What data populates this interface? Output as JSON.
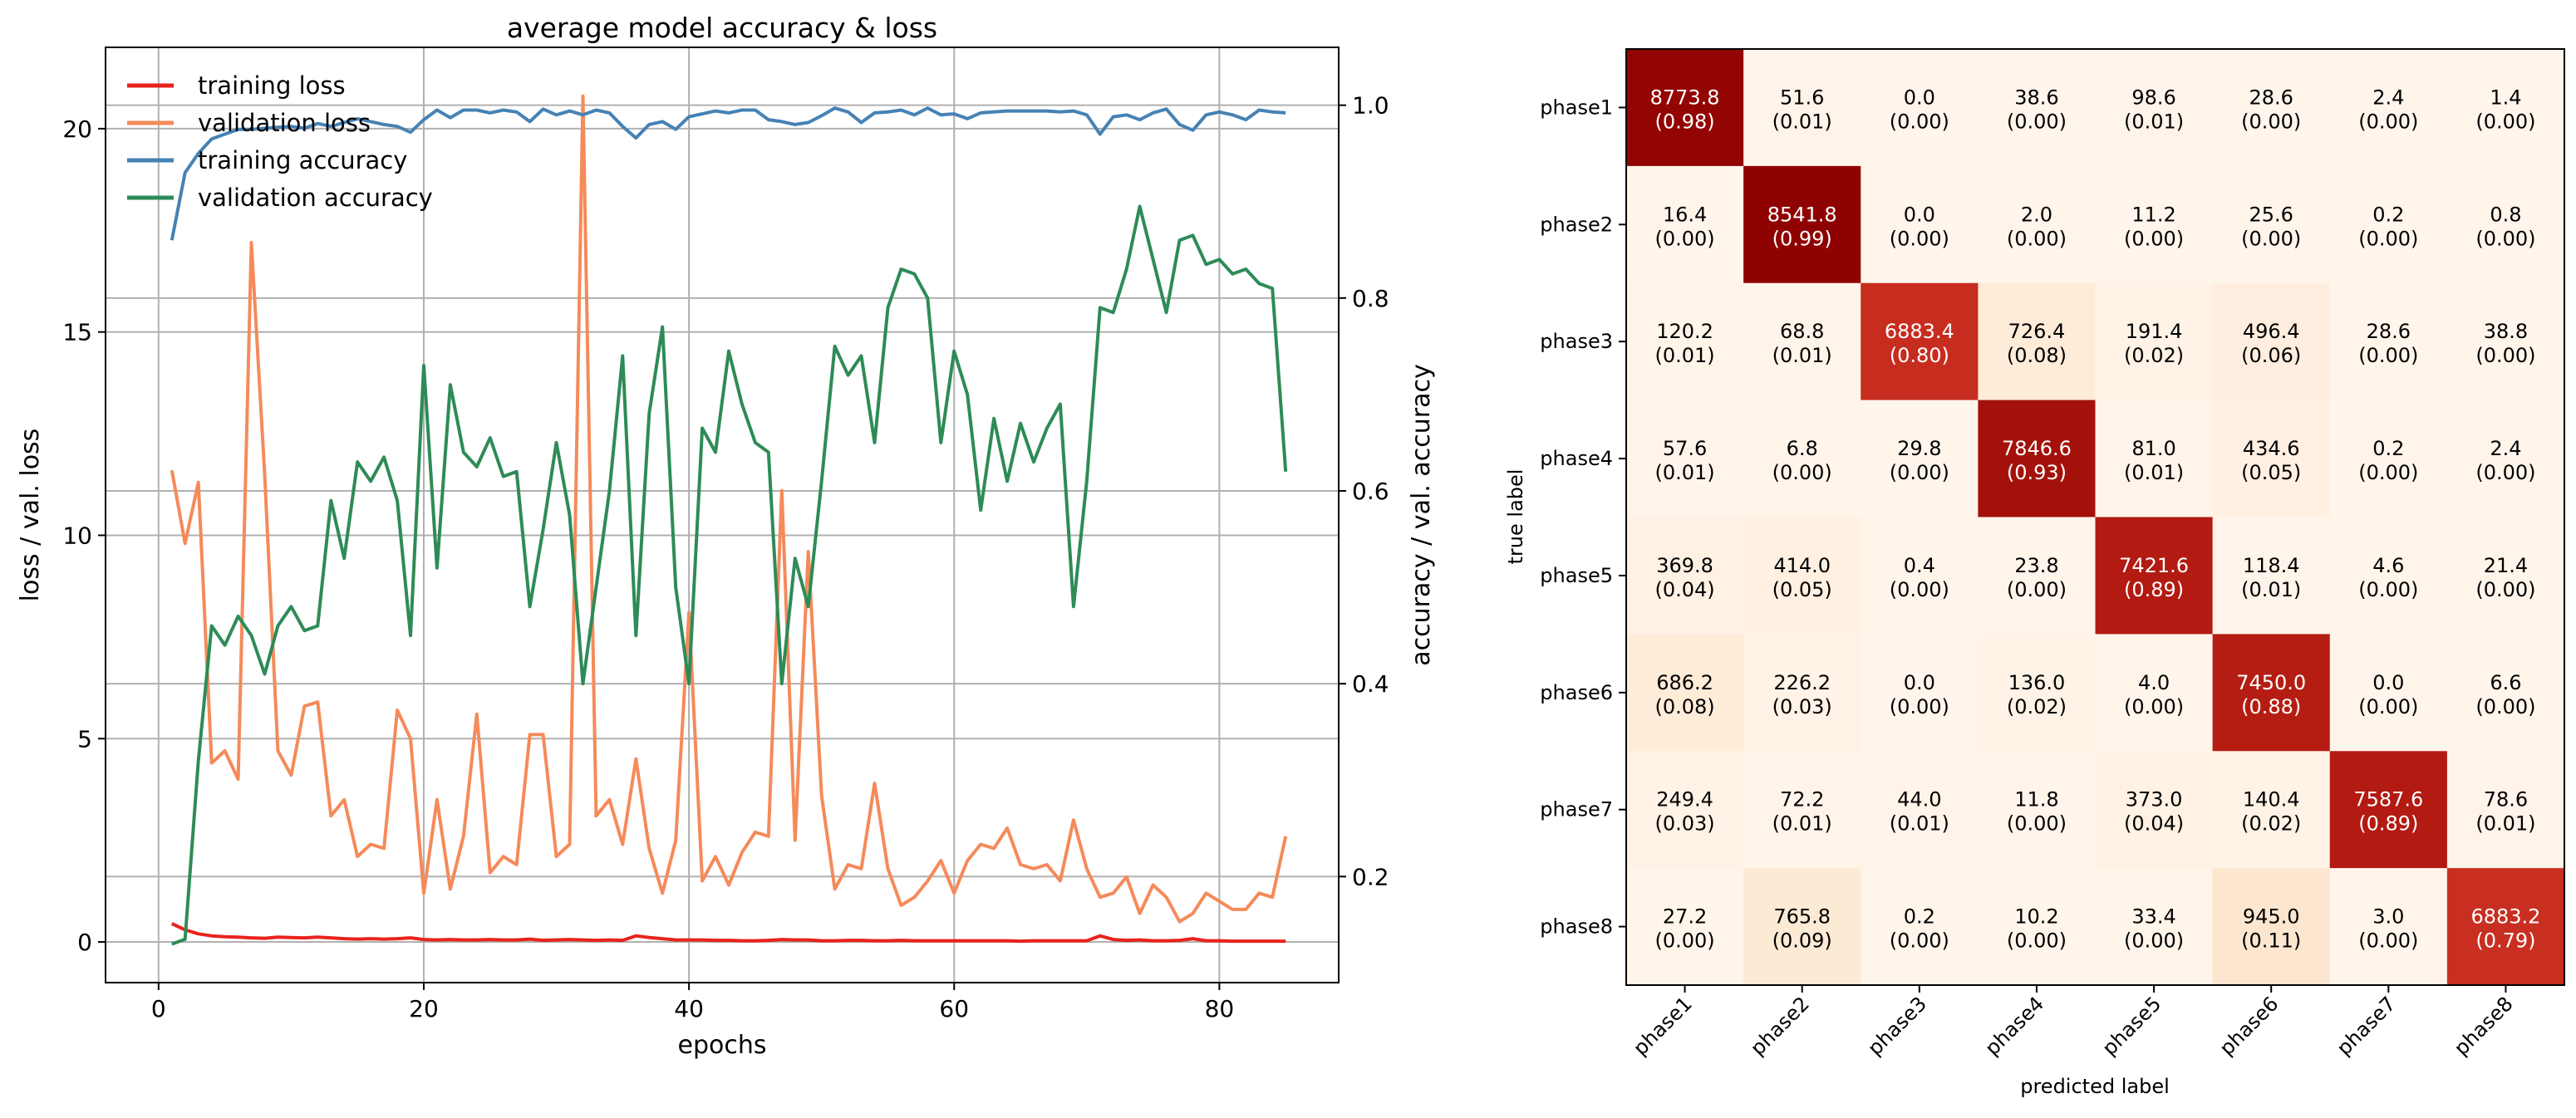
{
  "chart_data": [
    {
      "type": "line",
      "title": "average model accuracy & loss",
      "xlabel": "epochs",
      "ylabel_left": "loss / val. loss",
      "ylabel_right": "accuracy / val. accuracy",
      "xlim": [
        -4,
        89
      ],
      "ylim_left": [
        -1,
        22
      ],
      "ylim_right": [
        0.09,
        1.06
      ],
      "xticks": [
        0,
        20,
        40,
        60,
        80
      ],
      "yticks_left": [
        0,
        5,
        10,
        15,
        20
      ],
      "yticks_right": [
        0.2,
        0.4,
        0.6,
        0.8,
        1.0
      ],
      "grid": true,
      "legend_loc": "top-left",
      "series": [
        {
          "name": "training loss",
          "axis": "left",
          "color": "#e8231c",
          "x": [
            1,
            2,
            3,
            4,
            5,
            6,
            7,
            8,
            9,
            10,
            11,
            12,
            13,
            14,
            15,
            16,
            17,
            18,
            19,
            20,
            21,
            22,
            23,
            24,
            25,
            26,
            27,
            28,
            29,
            30,
            31,
            32,
            33,
            34,
            35,
            36,
            37,
            38,
            39,
            40,
            41,
            42,
            43,
            44,
            45,
            46,
            47,
            48,
            49,
            50,
            51,
            52,
            53,
            54,
            55,
            56,
            57,
            58,
            59,
            60,
            61,
            62,
            63,
            64,
            65,
            66,
            67,
            68,
            69,
            70,
            71,
            72,
            73,
            74,
            75,
            76,
            77,
            78,
            79,
            80,
            81,
            82,
            83,
            84,
            85
          ],
          "values": [
            0.45,
            0.3,
            0.2,
            0.15,
            0.13,
            0.12,
            0.1,
            0.09,
            0.12,
            0.11,
            0.1,
            0.12,
            0.1,
            0.08,
            0.07,
            0.08,
            0.07,
            0.08,
            0.1,
            0.06,
            0.05,
            0.06,
            0.05,
            0.05,
            0.06,
            0.05,
            0.05,
            0.07,
            0.04,
            0.05,
            0.06,
            0.05,
            0.04,
            0.05,
            0.04,
            0.15,
            0.11,
            0.08,
            0.05,
            0.05,
            0.05,
            0.04,
            0.04,
            0.03,
            0.03,
            0.04,
            0.06,
            0.05,
            0.05,
            0.03,
            0.03,
            0.04,
            0.04,
            0.03,
            0.03,
            0.04,
            0.03,
            0.03,
            0.03,
            0.03,
            0.03,
            0.03,
            0.03,
            0.03,
            0.02,
            0.03,
            0.03,
            0.03,
            0.03,
            0.03,
            0.15,
            0.06,
            0.04,
            0.05,
            0.03,
            0.03,
            0.04,
            0.08,
            0.03,
            0.03,
            0.02,
            0.02,
            0.02,
            0.02,
            0.02
          ]
        },
        {
          "name": "validation loss",
          "axis": "left",
          "color": "#f58a5a",
          "x": [
            1,
            2,
            3,
            4,
            5,
            6,
            7,
            8,
            9,
            10,
            11,
            12,
            13,
            14,
            15,
            16,
            17,
            18,
            19,
            20,
            21,
            22,
            23,
            24,
            25,
            26,
            27,
            28,
            29,
            30,
            31,
            32,
            33,
            34,
            35,
            36,
            37,
            38,
            39,
            40,
            41,
            42,
            43,
            44,
            45,
            46,
            47,
            48,
            49,
            50,
            51,
            52,
            53,
            54,
            55,
            56,
            57,
            58,
            59,
            60,
            61,
            62,
            63,
            64,
            65,
            66,
            67,
            68,
            69,
            70,
            71,
            72,
            73,
            74,
            75,
            76,
            77,
            78,
            79,
            80,
            81,
            82,
            83,
            84,
            85
          ],
          "values": [
            11.6,
            9.8,
            11.3,
            4.4,
            4.7,
            4.0,
            17.2,
            11.5,
            4.7,
            4.1,
            5.8,
            5.9,
            3.1,
            3.5,
            2.1,
            2.4,
            2.3,
            5.7,
            5.0,
            1.2,
            3.5,
            1.3,
            2.6,
            5.6,
            1.7,
            2.1,
            1.9,
            5.1,
            5.1,
            2.1,
            2.4,
            20.8,
            3.1,
            3.5,
            2.4,
            4.5,
            2.3,
            1.2,
            2.5,
            8.1,
            1.5,
            2.1,
            1.4,
            2.2,
            2.7,
            2.6,
            11.1,
            2.5,
            9.6,
            3.6,
            1.3,
            1.9,
            1.8,
            3.9,
            1.8,
            0.9,
            1.1,
            1.5,
            2.0,
            1.2,
            2.0,
            2.4,
            2.3,
            2.8,
            1.9,
            1.8,
            1.9,
            1.5,
            3.0,
            1.8,
            1.1,
            1.2,
            1.6,
            0.7,
            1.4,
            1.1,
            0.5,
            0.7,
            1.2,
            1.0,
            0.8,
            0.8,
            1.2,
            1.1,
            2.6
          ]
        },
        {
          "name": "training accuracy",
          "axis": "right",
          "color": "#4682b4",
          "x": [
            1,
            2,
            3,
            4,
            5,
            6,
            7,
            8,
            9,
            10,
            11,
            12,
            13,
            14,
            15,
            16,
            17,
            18,
            19,
            20,
            21,
            22,
            23,
            24,
            25,
            26,
            27,
            28,
            29,
            30,
            31,
            32,
            33,
            34,
            35,
            36,
            37,
            38,
            39,
            40,
            41,
            42,
            43,
            44,
            45,
            46,
            47,
            48,
            49,
            50,
            51,
            52,
            53,
            54,
            55,
            56,
            57,
            58,
            59,
            60,
            61,
            62,
            63,
            64,
            65,
            66,
            67,
            68,
            69,
            70,
            71,
            72,
            73,
            74,
            75,
            76,
            77,
            78,
            79,
            80,
            81,
            82,
            83,
            84,
            85
          ],
          "values": [
            0.86,
            0.93,
            0.95,
            0.965,
            0.97,
            0.975,
            0.975,
            0.976,
            0.977,
            0.978,
            0.976,
            0.981,
            0.978,
            0.982,
            0.986,
            0.983,
            0.98,
            0.978,
            0.972,
            0.985,
            0.995,
            0.987,
            0.995,
            0.995,
            0.992,
            0.995,
            0.993,
            0.983,
            0.996,
            0.99,
            0.994,
            0.99,
            0.995,
            0.992,
            0.978,
            0.966,
            0.98,
            0.983,
            0.975,
            0.988,
            0.991,
            0.994,
            0.992,
            0.995,
            0.995,
            0.985,
            0.983,
            0.98,
            0.982,
            0.989,
            0.997,
            0.993,
            0.982,
            0.992,
            0.993,
            0.995,
            0.99,
            0.997,
            0.99,
            0.991,
            0.986,
            0.992,
            0.993,
            0.994,
            0.994,
            0.994,
            0.994,
            0.993,
            0.994,
            0.99,
            0.97,
            0.988,
            0.99,
            0.985,
            0.992,
            0.996,
            0.98,
            0.974,
            0.99,
            0.993,
            0.99,
            0.985,
            0.995,
            0.993,
            0.992
          ]
        },
        {
          "name": "validation accuracy",
          "axis": "right",
          "color": "#2e8b57",
          "x": [
            1,
            2,
            3,
            4,
            5,
            6,
            7,
            8,
            9,
            10,
            11,
            12,
            13,
            14,
            15,
            16,
            17,
            18,
            19,
            20,
            21,
            22,
            23,
            24,
            25,
            26,
            27,
            28,
            29,
            30,
            31,
            32,
            33,
            34,
            35,
            36,
            37,
            38,
            39,
            40,
            41,
            42,
            43,
            44,
            45,
            46,
            47,
            48,
            49,
            50,
            51,
            52,
            53,
            54,
            55,
            56,
            57,
            58,
            59,
            60,
            61,
            62,
            63,
            64,
            65,
            66,
            67,
            68,
            69,
            70,
            71,
            72,
            73,
            74,
            75,
            76,
            77,
            78,
            79,
            80,
            81,
            82,
            83,
            84,
            85
          ],
          "values": [
            0.13,
            0.135,
            0.32,
            0.46,
            0.44,
            0.47,
            0.45,
            0.41,
            0.46,
            0.48,
            0.455,
            0.46,
            0.59,
            0.53,
            0.63,
            0.61,
            0.635,
            0.59,
            0.45,
            0.73,
            0.52,
            0.71,
            0.64,
            0.625,
            0.655,
            0.615,
            0.62,
            0.48,
            0.56,
            0.65,
            0.575,
            0.4,
            0.5,
            0.6,
            0.74,
            0.45,
            0.68,
            0.77,
            0.5,
            0.4,
            0.665,
            0.64,
            0.745,
            0.69,
            0.65,
            0.64,
            0.4,
            0.53,
            0.48,
            0.61,
            0.75,
            0.72,
            0.74,
            0.65,
            0.79,
            0.83,
            0.825,
            0.8,
            0.65,
            0.745,
            0.7,
            0.58,
            0.675,
            0.61,
            0.67,
            0.63,
            0.665,
            0.69,
            0.48,
            0.61,
            0.79,
            0.785,
            0.83,
            0.895,
            0.84,
            0.785,
            0.86,
            0.865,
            0.835,
            0.84,
            0.825,
            0.83,
            0.815,
            0.81,
            0.62
          ]
        }
      ]
    },
    {
      "type": "heatmap",
      "xlabel": "predicted label",
      "ylabel": "true label",
      "labels": [
        "phase1",
        "phase2",
        "phase3",
        "phase4",
        "phase5",
        "phase6",
        "phase7",
        "phase8"
      ],
      "values": [
        [
          8773.8,
          51.6,
          0.0,
          38.6,
          98.6,
          28.6,
          2.4,
          1.4
        ],
        [
          16.4,
          8541.8,
          0.0,
          2.0,
          11.2,
          25.6,
          0.2,
          0.8
        ],
        [
          120.2,
          68.8,
          6883.4,
          726.4,
          191.4,
          496.4,
          28.6,
          38.8
        ],
        [
          57.6,
          6.8,
          29.8,
          7846.6,
          81.0,
          434.6,
          0.2,
          2.4
        ],
        [
          369.8,
          414.0,
          0.4,
          23.8,
          7421.6,
          118.4,
          4.6,
          21.4
        ],
        [
          686.2,
          226.2,
          0.0,
          136.0,
          4.0,
          7450.0,
          0.0,
          6.6
        ],
        [
          249.4,
          72.2,
          44.0,
          11.8,
          373.0,
          140.4,
          7587.6,
          78.6
        ],
        [
          27.2,
          765.8,
          0.2,
          10.2,
          33.4,
          945.0,
          3.0,
          6883.2
        ]
      ],
      "fractions": [
        [
          0.98,
          0.01,
          0.0,
          0.0,
          0.01,
          0.0,
          0.0,
          0.0
        ],
        [
          0.0,
          0.99,
          0.0,
          0.0,
          0.0,
          0.0,
          0.0,
          0.0
        ],
        [
          0.01,
          0.01,
          0.8,
          0.08,
          0.02,
          0.06,
          0.0,
          0.0
        ],
        [
          0.01,
          0.0,
          0.0,
          0.93,
          0.01,
          0.05,
          0.0,
          0.0
        ],
        [
          0.04,
          0.05,
          0.0,
          0.0,
          0.89,
          0.01,
          0.0,
          0.0
        ],
        [
          0.08,
          0.03,
          0.0,
          0.02,
          0.0,
          0.88,
          0.0,
          0.0
        ],
        [
          0.03,
          0.01,
          0.01,
          0.0,
          0.04,
          0.02,
          0.89,
          0.01
        ],
        [
          0.0,
          0.09,
          0.0,
          0.0,
          0.0,
          0.11,
          0.0,
          0.79
        ]
      ],
      "colormap": "Reds",
      "color_low": "#fff5eb",
      "color_high": "#8b0000"
    }
  ]
}
